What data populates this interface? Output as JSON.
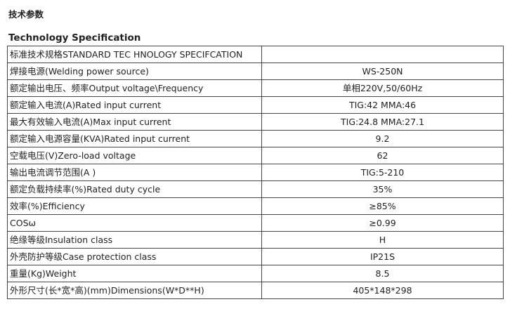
{
  "heading_cn": "技术参数",
  "heading_en": "Technology Specification",
  "rows": [
    {
      "label": "标准技术规格STANDARD TEC HNOLOGY SPECIFCATION",
      "value": ""
    },
    {
      "label": "焊接电源(Welding power source)",
      "value": "WS-250N"
    },
    {
      "label": "额定输出电压、频率Output voltage\\Frequency",
      "value": "单相220V,50/60Hz"
    },
    {
      "label": "额定输入电流(A)Rated input current",
      "value": "TIG:42  MMA:46"
    },
    {
      "label": "最大有效输入电流(A)Max input current",
      "value": "TIG:24.8  MMA:27.1"
    },
    {
      "label": "额定输入电源容量(KVA)Rated input current",
      "value": "9.2"
    },
    {
      "label": "空载电压(V)Zero-load voltage",
      "value": "62"
    },
    {
      "label": "输出电流调节范围(A )",
      "value": "TIG:5-210"
    },
    {
      "label": "额定负载持续率(%)Rated duty cycle",
      "value": "35%"
    },
    {
      "label": "效率(%)Efficiency",
      "value": "≥85%"
    },
    {
      "label": "COSω",
      "value": "≥0.99"
    },
    {
      "label": "绝缘等级Insulation class",
      "value": "H"
    },
    {
      "label": "外壳防护等级Case protection class",
      "value": "IP21S"
    },
    {
      "label": "重量(Kg)Weight",
      "value": "8.5"
    },
    {
      "label": "外形尺寸(长*宽*高)(mm)Dimensions(W*D**H)",
      "value": "405*148*298"
    }
  ]
}
